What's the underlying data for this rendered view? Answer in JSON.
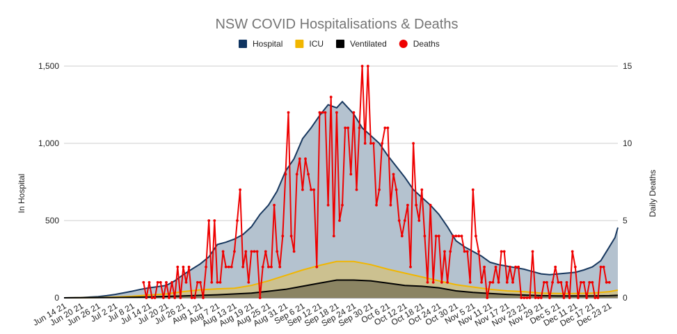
{
  "chart_data": {
    "type": "area",
    "title": "NSW COVID Hospitalisations & Deaths",
    "ylabel_left": "In Hospital",
    "ylabel_right": "Daily Deaths",
    "ylim_left": [
      0,
      1500
    ],
    "ylim_right": [
      0,
      15
    ],
    "left_ticks": [
      "1,500",
      "1,000",
      "500",
      "0"
    ],
    "right_ticks": [
      "15",
      "10",
      "5",
      "0"
    ],
    "grid": true,
    "legend_position": "top",
    "x_start": "2021-06-14",
    "x_end": "2021-12-26",
    "x_tick_labels": [
      "Jun 14 21",
      "Jun 20 21",
      "Jun 26 21",
      "Jul 2 21",
      "Jul 8 21",
      "Jul 14 21",
      "Jul 20 21",
      "Jul 26 21",
      "Aug 1 21",
      "Aug 7 21",
      "Aug 13 21",
      "Aug 19 21",
      "Aug 25 21",
      "Aug 31 21",
      "Sep 6 21",
      "Sep 12 21",
      "Sep 18 21",
      "Sep 24 21",
      "Sep 30 21",
      "Oct 6 21",
      "Oct 12 21",
      "Oct 18 21",
      "Oct 24 21",
      "Oct 30 21",
      "Nov 5 21",
      "Nov 11 21",
      "Nov 17 21",
      "Nov 23 21",
      "Nov 29 21",
      "Dec 5 21",
      "Dec 11 21",
      "Dec 17 21",
      "Dec 23 21"
    ],
    "series": [
      {
        "name": "Hospital",
        "color": "#17375e",
        "fill": "#b4c2cf",
        "axis": "left",
        "points": [
          [
            "2021-06-14",
            0
          ],
          [
            "2021-06-20",
            2
          ],
          [
            "2021-06-26",
            8
          ],
          [
            "2021-06-29",
            14
          ],
          [
            "2021-07-02",
            22
          ],
          [
            "2021-07-05",
            32
          ],
          [
            "2021-07-08",
            43
          ],
          [
            "2021-07-11",
            55
          ],
          [
            "2021-07-14",
            65
          ],
          [
            "2021-07-17",
            72
          ],
          [
            "2021-07-20",
            80
          ],
          [
            "2021-07-23",
            110
          ],
          [
            "2021-07-26",
            150
          ],
          [
            "2021-07-29",
            185
          ],
          [
            "2021-08-01",
            220
          ],
          [
            "2021-08-04",
            265
          ],
          [
            "2021-08-07",
            345
          ],
          [
            "2021-08-10",
            360
          ],
          [
            "2021-08-13",
            380
          ],
          [
            "2021-08-16",
            410
          ],
          [
            "2021-08-19",
            460
          ],
          [
            "2021-08-22",
            540
          ],
          [
            "2021-08-25",
            600
          ],
          [
            "2021-08-28",
            690
          ],
          [
            "2021-08-31",
            820
          ],
          [
            "2021-09-03",
            900
          ],
          [
            "2021-09-06",
            1030
          ],
          [
            "2021-09-09",
            1100
          ],
          [
            "2021-09-12",
            1180
          ],
          [
            "2021-09-15",
            1250
          ],
          [
            "2021-09-18",
            1230
          ],
          [
            "2021-09-20",
            1270
          ],
          [
            "2021-09-22",
            1230
          ],
          [
            "2021-09-24",
            1190
          ],
          [
            "2021-09-27",
            1100
          ],
          [
            "2021-09-30",
            1050
          ],
          [
            "2021-10-03",
            1000
          ],
          [
            "2021-10-06",
            920
          ],
          [
            "2021-10-09",
            850
          ],
          [
            "2021-10-12",
            780
          ],
          [
            "2021-10-15",
            700
          ],
          [
            "2021-10-18",
            650
          ],
          [
            "2021-10-21",
            600
          ],
          [
            "2021-10-24",
            540
          ],
          [
            "2021-10-27",
            460
          ],
          [
            "2021-10-30",
            370
          ],
          [
            "2021-11-02",
            330
          ],
          [
            "2021-11-05",
            300
          ],
          [
            "2021-11-08",
            270
          ],
          [
            "2021-11-11",
            230
          ],
          [
            "2021-11-14",
            215
          ],
          [
            "2021-11-17",
            205
          ],
          [
            "2021-11-20",
            195
          ],
          [
            "2021-11-23",
            185
          ],
          [
            "2021-11-26",
            170
          ],
          [
            "2021-11-29",
            155
          ],
          [
            "2021-12-02",
            150
          ],
          [
            "2021-12-05",
            155
          ],
          [
            "2021-12-08",
            160
          ],
          [
            "2021-12-11",
            165
          ],
          [
            "2021-12-14",
            180
          ],
          [
            "2021-12-17",
            200
          ],
          [
            "2021-12-20",
            240
          ],
          [
            "2021-12-23",
            330
          ],
          [
            "2021-12-25",
            390
          ],
          [
            "2021-12-26",
            455
          ]
        ]
      },
      {
        "name": "ICU",
        "color": "#f1b600",
        "fill": "#ccc190",
        "axis": "left",
        "points": [
          [
            "2021-06-14",
            0
          ],
          [
            "2021-06-26",
            2
          ],
          [
            "2021-07-02",
            5
          ],
          [
            "2021-07-08",
            10
          ],
          [
            "2021-07-14",
            18
          ],
          [
            "2021-07-20",
            25
          ],
          [
            "2021-07-26",
            40
          ],
          [
            "2021-08-01",
            52
          ],
          [
            "2021-08-07",
            58
          ],
          [
            "2021-08-13",
            62
          ],
          [
            "2021-08-19",
            80
          ],
          [
            "2021-08-25",
            110
          ],
          [
            "2021-08-31",
            145
          ],
          [
            "2021-09-06",
            180
          ],
          [
            "2021-09-12",
            210
          ],
          [
            "2021-09-18",
            235
          ],
          [
            "2021-09-24",
            235
          ],
          [
            "2021-09-30",
            215
          ],
          [
            "2021-10-06",
            185
          ],
          [
            "2021-10-12",
            160
          ],
          [
            "2021-10-18",
            135
          ],
          [
            "2021-10-24",
            110
          ],
          [
            "2021-10-30",
            85
          ],
          [
            "2021-11-05",
            70
          ],
          [
            "2021-11-11",
            55
          ],
          [
            "2021-11-17",
            45
          ],
          [
            "2021-11-23",
            40
          ],
          [
            "2021-11-29",
            30
          ],
          [
            "2021-12-05",
            28
          ],
          [
            "2021-12-11",
            28
          ],
          [
            "2021-12-17",
            30
          ],
          [
            "2021-12-23",
            40
          ],
          [
            "2021-12-26",
            50
          ]
        ]
      },
      {
        "name": "Ventilated",
        "color": "#000000",
        "fill": "#8b8463",
        "axis": "left",
        "points": [
          [
            "2021-06-14",
            0
          ],
          [
            "2021-07-02",
            2
          ],
          [
            "2021-07-14",
            6
          ],
          [
            "2021-07-26",
            12
          ],
          [
            "2021-08-07",
            20
          ],
          [
            "2021-08-19",
            30
          ],
          [
            "2021-08-31",
            55
          ],
          [
            "2021-09-06",
            75
          ],
          [
            "2021-09-12",
            95
          ],
          [
            "2021-09-18",
            115
          ],
          [
            "2021-09-24",
            115
          ],
          [
            "2021-09-30",
            110
          ],
          [
            "2021-10-06",
            95
          ],
          [
            "2021-10-12",
            80
          ],
          [
            "2021-10-18",
            75
          ],
          [
            "2021-10-24",
            65
          ],
          [
            "2021-10-30",
            45
          ],
          [
            "2021-11-05",
            35
          ],
          [
            "2021-11-11",
            28
          ],
          [
            "2021-11-17",
            22
          ],
          [
            "2021-11-23",
            18
          ],
          [
            "2021-11-29",
            14
          ],
          [
            "2021-12-05",
            12
          ],
          [
            "2021-12-11",
            12
          ],
          [
            "2021-12-17",
            12
          ],
          [
            "2021-12-23",
            14
          ],
          [
            "2021-12-26",
            16
          ]
        ]
      },
      {
        "name": "Deaths",
        "color": "#ee0000",
        "axis": "right",
        "values_start": "2021-07-12",
        "values": [
          1,
          0,
          1,
          0,
          0,
          1,
          1,
          0,
          1,
          0,
          1,
          0,
          2,
          0,
          2,
          1,
          2,
          0,
          0,
          1,
          1,
          0,
          2,
          5,
          1,
          5,
          1,
          1,
          3,
          2,
          2,
          2,
          3,
          5,
          7,
          2,
          3,
          1,
          3,
          3,
          3,
          0,
          2,
          3,
          2,
          2,
          6,
          3,
          2,
          4,
          8,
          12,
          4,
          3,
          8,
          9,
          7,
          9,
          8,
          7,
          7,
          2,
          12,
          12,
          12,
          6,
          13,
          4,
          12,
          5,
          6,
          11,
          11,
          8,
          12,
          7,
          11,
          15,
          10,
          15,
          10,
          10,
          6,
          7,
          10,
          11,
          11,
          6,
          8,
          7,
          5,
          4,
          5,
          6,
          2,
          10,
          6,
          5,
          7,
          4,
          1,
          6,
          1,
          4,
          4,
          1,
          3,
          1,
          3,
          4,
          4,
          4,
          4,
          3,
          3,
          1,
          7,
          4,
          3,
          1,
          2,
          0,
          1,
          1,
          2,
          1,
          3,
          3,
          1,
          2,
          1,
          2,
          2,
          0,
          0,
          0,
          0,
          3,
          0,
          0,
          0,
          1,
          1,
          0,
          1,
          2,
          1,
          1,
          0,
          1,
          0,
          3,
          2,
          0,
          1,
          1,
          0,
          1,
          1,
          0,
          0,
          2,
          2,
          1,
          1
        ]
      }
    ]
  }
}
